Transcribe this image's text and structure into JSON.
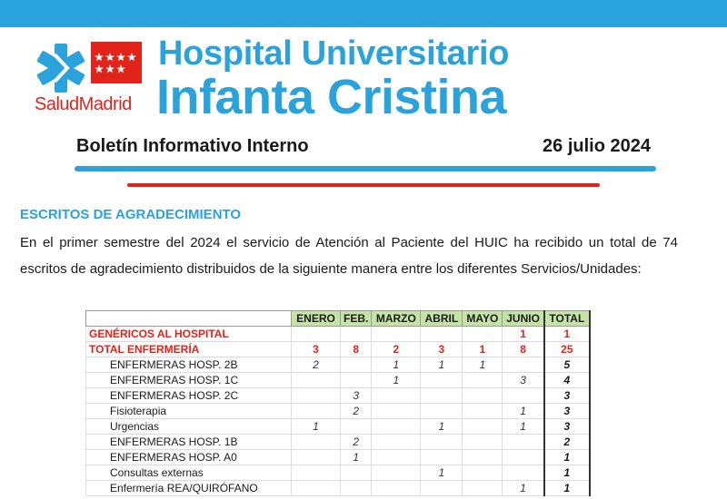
{
  "header": {
    "logo_text": "SaludMadrid",
    "hospital_line1": "Hospital Universitario",
    "hospital_line2": "Infanta Cristina",
    "bulletin_title": "Boletín Informativo Interno",
    "bulletin_date": "26 julio 2024",
    "colors": {
      "brand_blue": "#2aa3dc",
      "brand_red": "#e2231a"
    }
  },
  "section": {
    "heading": "ESCRITOS DE AGRADECIMIENTO",
    "intro": "En el primer semestre del 2024 el servicio de Atención al Paciente del HUIC ha recibido un total de 74 escritos de agradecimiento distribuidos de la siguiente manera entre los diferentes Servicios/Unidades:"
  },
  "table": {
    "columns": [
      "ENERO",
      "FEB.",
      "MARZO",
      "ABRIL",
      "MAYO",
      "JUNIO",
      "TOTAL"
    ],
    "rows": [
      {
        "name": "GENÉRICOS AL HOSPITAL",
        "values": [
          "",
          "",
          "",
          "",
          "",
          "1"
        ],
        "total": "1",
        "style": "red"
      },
      {
        "name": "TOTAL ENFERMERÍA",
        "values": [
          "3",
          "8",
          "2",
          "3",
          "1",
          "8"
        ],
        "total": "25",
        "style": "red"
      },
      {
        "name": "ENFERMERAS HOSP. 2B",
        "values": [
          "2",
          "",
          "1",
          "1",
          "1",
          ""
        ],
        "total": "5",
        "style": "sub"
      },
      {
        "name": "ENFERMERAS HOSP. 1C",
        "values": [
          "",
          "",
          "1",
          "",
          "",
          "3"
        ],
        "total": "4",
        "style": "sub"
      },
      {
        "name": "ENFERMERAS HOSP. 2C",
        "values": [
          "",
          "3",
          "",
          "",
          "",
          ""
        ],
        "total": "3",
        "style": "sub"
      },
      {
        "name": "Fisioterapia",
        "values": [
          "",
          "2",
          "",
          "",
          "",
          "1"
        ],
        "total": "3",
        "style": "plain"
      },
      {
        "name": "Urgencias",
        "values": [
          "1",
          "",
          "",
          "1",
          "",
          "1"
        ],
        "total": "3",
        "style": "plain"
      },
      {
        "name": "ENFERMERAS HOSP. 1B",
        "values": [
          "",
          "2",
          "",
          "",
          "",
          ""
        ],
        "total": "2",
        "style": "sub"
      },
      {
        "name": "ENFERMERAS HOSP. A0",
        "values": [
          "",
          "1",
          "",
          "",
          "",
          ""
        ],
        "total": "1",
        "style": "sub"
      },
      {
        "name": "Consultas externas",
        "values": [
          "",
          "",
          "",
          "1",
          "",
          ""
        ],
        "total": "1",
        "style": "plain"
      },
      {
        "name": "Enfermería REA/QUIRÓFANO",
        "values": [
          "",
          "",
          "",
          "",
          "",
          "1"
        ],
        "total": "1",
        "style": "plain"
      }
    ]
  }
}
